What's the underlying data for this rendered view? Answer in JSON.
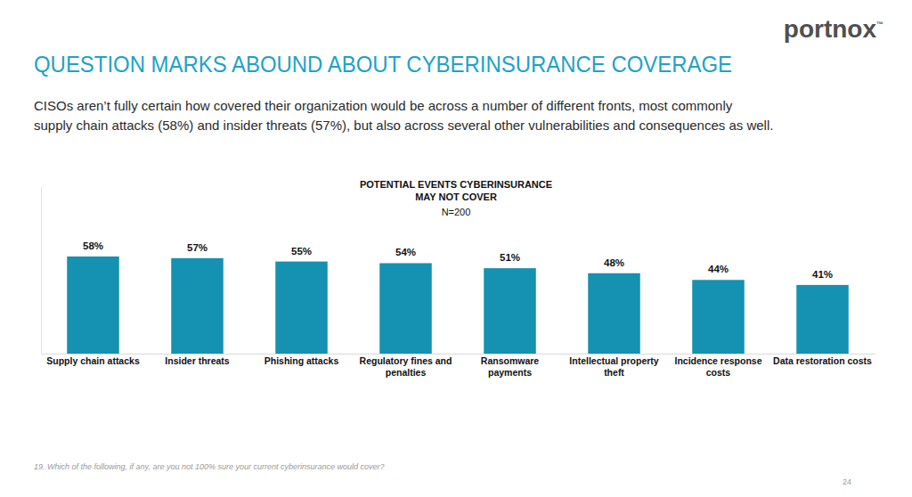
{
  "header": {
    "title": "QUESTION MARKS ABOUND ABOUT CYBERINSURANCE COVERAGE",
    "description": [
      "CISOs aren’t fully certain how covered their organization would be across a number of different fronts, most commonly",
      "supply chain attacks (58%) and insider threats (57%), but also across several other vulnerabilities and consequences as well."
    ],
    "logo": "portnox",
    "trademark": "™"
  },
  "chart_data": {
    "type": "bar",
    "title": "POTENTIAL EVENTS CYBERINSURANCE MAY NOT COVER",
    "subtitle": "N=200",
    "categories": [
      "Supply chain attacks",
      "Insider threats",
      "Phishing attacks",
      "Regulatory fines and penalties",
      "Ransomware payments",
      "Intellectual property theft",
      "Incidence response costs",
      "Data restoration costs"
    ],
    "values": [
      58,
      57,
      55,
      54,
      51,
      48,
      44,
      41
    ],
    "value_labels": [
      "58%",
      "57%",
      "55%",
      "54%",
      "51%",
      "48%",
      "44%",
      "41%"
    ],
    "color": "#1591b1",
    "ylim": [
      0,
      100
    ],
    "data_labels": true,
    "tick_labels": "x"
  },
  "footer": {
    "note": "19. Which of the following, if any, are you not 100% sure your current cyberinsurance would cover?",
    "page": "24"
  }
}
